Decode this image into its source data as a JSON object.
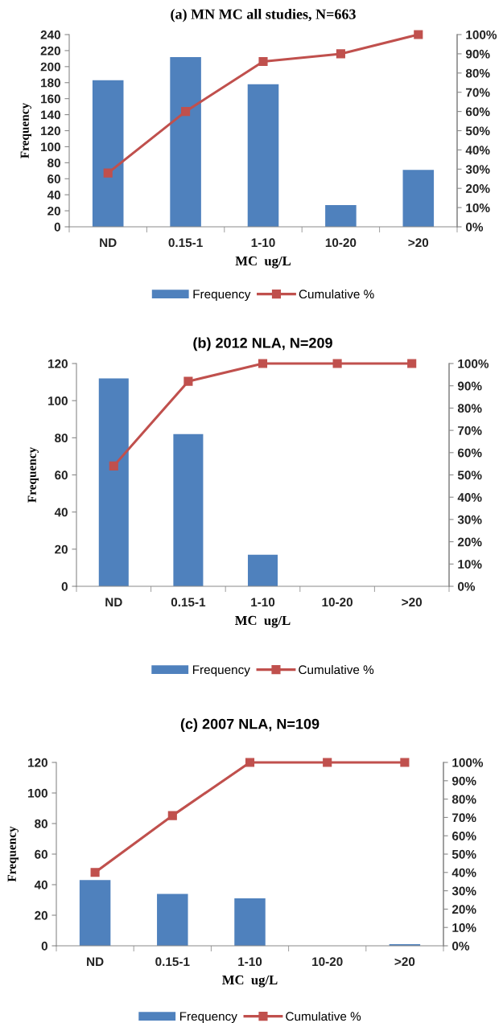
{
  "chart_data": [
    {
      "type": "bar",
      "title": "(a) MN MC all studies, N=663",
      "xlabel": "MC  ug/L",
      "ylabel": "Frequency",
      "categories": [
        "ND",
        "0.15-1",
        "1-10",
        "10-20",
        ">20"
      ],
      "ylim": [
        0,
        240
      ],
      "yticks": [
        0,
        20,
        40,
        60,
        80,
        100,
        120,
        140,
        160,
        180,
        200,
        220,
        240
      ],
      "y2lim": [
        0,
        100
      ],
      "y2ticks": [
        {
          "value": 0,
          "label": "0%"
        },
        {
          "value": 10,
          "label": "10%"
        },
        {
          "value": 20,
          "label": "20%"
        },
        {
          "value": 30,
          "label": "30%"
        },
        {
          "value": 40,
          "label": "40%"
        },
        {
          "value": 50,
          "label": "50%"
        },
        {
          "value": 60,
          "label": "60%"
        },
        {
          "value": 70,
          "label": "70%"
        },
        {
          "value": 80,
          "label": "80%"
        },
        {
          "value": 90,
          "label": "90%"
        },
        {
          "value": 100,
          "label": "100%"
        }
      ],
      "grid": false,
      "legend": "bottom",
      "series": [
        {
          "name": "Frequency",
          "color": "#4f81bd",
          "values": [
            183,
            212,
            178,
            27,
            71
          ]
        },
        {
          "name": "Cumulative %",
          "type": "line",
          "axis": "y2",
          "color": "#c0504d",
          "marker": "square",
          "values": [
            28,
            60,
            86,
            90,
            100
          ]
        }
      ]
    },
    {
      "type": "bar",
      "title": "(b) 2012 NLA, N=209",
      "xlabel": "MC  ug/L",
      "ylabel": "Frequency",
      "categories": [
        "ND",
        "0.15-1",
        "1-10",
        "10-20",
        ">20"
      ],
      "ylim": [
        0,
        120
      ],
      "yticks": [
        0,
        20,
        40,
        60,
        80,
        100,
        120
      ],
      "y2lim": [
        0,
        100
      ],
      "y2ticks": [
        {
          "value": 0,
          "label": "0%"
        },
        {
          "value": 10,
          "label": "10%"
        },
        {
          "value": 20,
          "label": "20%"
        },
        {
          "value": 30,
          "label": "30%"
        },
        {
          "value": 40,
          "label": "40%"
        },
        {
          "value": 50,
          "label": "50%"
        },
        {
          "value": 60,
          "label": "60%"
        },
        {
          "value": 70,
          "label": "70%"
        },
        {
          "value": 80,
          "label": "80%"
        },
        {
          "value": 90,
          "label": "90%"
        },
        {
          "value": 100,
          "label": "100%"
        }
      ],
      "grid": false,
      "legend": "bottom",
      "series": [
        {
          "name": "Frequency",
          "color": "#4f81bd",
          "values": [
            112,
            82,
            17,
            0,
            0
          ]
        },
        {
          "name": "Cumulative %",
          "type": "line",
          "axis": "y2",
          "color": "#c0504d",
          "marker": "square",
          "values": [
            54,
            92,
            100,
            100,
            100
          ]
        }
      ]
    },
    {
      "type": "bar",
      "title": "(c) 2007 NLA, N=109",
      "xlabel": "MC  ug/L",
      "ylabel": "Frequency",
      "categories": [
        "ND",
        "0.15-1",
        "1-10",
        "10-20",
        ">20"
      ],
      "ylim": [
        0,
        120
      ],
      "yticks": [
        0,
        20,
        40,
        60,
        80,
        100,
        120
      ],
      "y2lim": [
        0,
        100
      ],
      "y2ticks": [
        {
          "value": 0,
          "label": "0%"
        },
        {
          "value": 10,
          "label": "10%"
        },
        {
          "value": 20,
          "label": "20%"
        },
        {
          "value": 30,
          "label": "30%"
        },
        {
          "value": 40,
          "label": "40%"
        },
        {
          "value": 50,
          "label": "50%"
        },
        {
          "value": 60,
          "label": "60%"
        },
        {
          "value": 70,
          "label": "70%"
        },
        {
          "value": 80,
          "label": "80%"
        },
        {
          "value": 90,
          "label": "90%"
        },
        {
          "value": 100,
          "label": "100%"
        }
      ],
      "grid": false,
      "legend": "bottom",
      "series": [
        {
          "name": "Frequency",
          "color": "#4f81bd",
          "values": [
            43,
            34,
            31,
            0,
            1
          ]
        },
        {
          "name": "Cumulative %",
          "type": "line",
          "axis": "y2",
          "color": "#c0504d",
          "marker": "square",
          "values": [
            40,
            71,
            100,
            100,
            100
          ]
        }
      ]
    }
  ]
}
